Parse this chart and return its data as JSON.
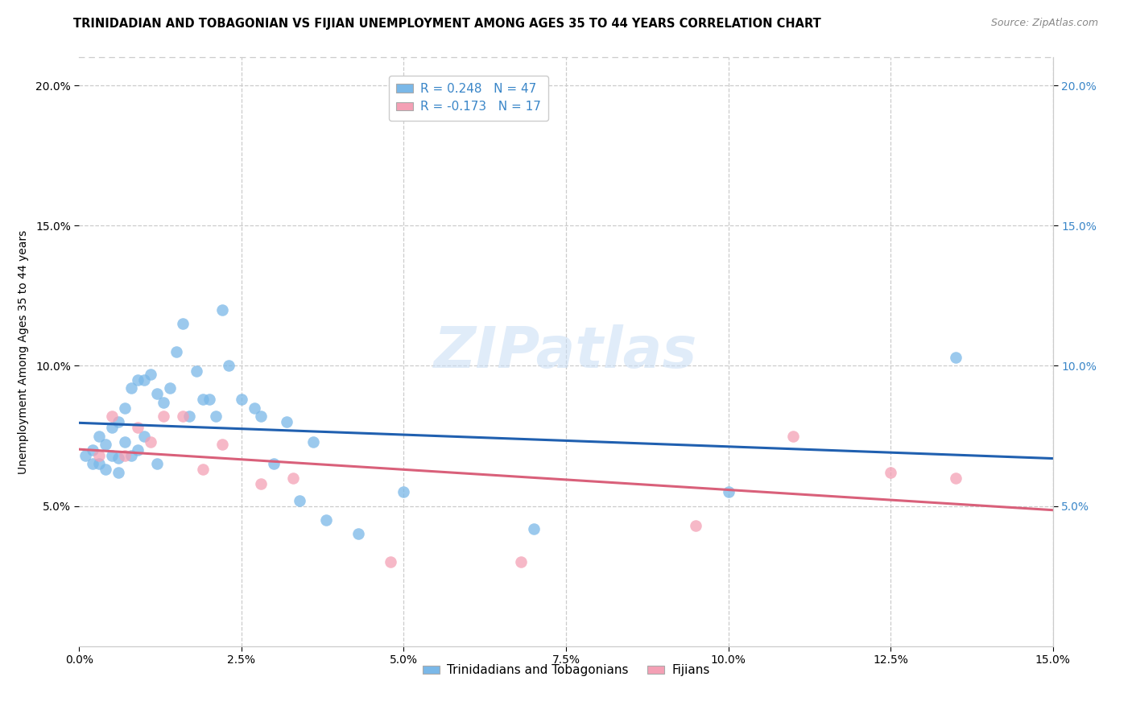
{
  "title": "TRINIDADIAN AND TOBAGONIAN VS FIJIAN UNEMPLOYMENT AMONG AGES 35 TO 44 YEARS CORRELATION CHART",
  "source": "Source: ZipAtlas.com",
  "ylabel": "Unemployment Among Ages 35 to 44 years",
  "xlim": [
    0.0,
    0.15
  ],
  "ylim": [
    0.0,
    0.21
  ],
  "x_ticks": [
    0.0,
    0.025,
    0.05,
    0.075,
    0.1,
    0.125,
    0.15
  ],
  "y_ticks": [
    0.05,
    0.1,
    0.15,
    0.2
  ],
  "blue_R": 0.248,
  "blue_N": 47,
  "pink_R": -0.173,
  "pink_N": 17,
  "blue_color": "#7ab8e8",
  "pink_color": "#f4a0b5",
  "blue_line_color": "#2060b0",
  "pink_line_color": "#d9607a",
  "legend_label_blue": "Trinidadians and Tobagonians",
  "legend_label_pink": "Fijians",
  "watermark": "ZIPatlas",
  "blue_points_x": [
    0.001,
    0.002,
    0.002,
    0.003,
    0.003,
    0.004,
    0.004,
    0.005,
    0.005,
    0.006,
    0.006,
    0.006,
    0.007,
    0.007,
    0.008,
    0.008,
    0.009,
    0.009,
    0.01,
    0.01,
    0.011,
    0.012,
    0.012,
    0.013,
    0.014,
    0.015,
    0.016,
    0.017,
    0.018,
    0.019,
    0.02,
    0.021,
    0.022,
    0.023,
    0.025,
    0.027,
    0.028,
    0.03,
    0.032,
    0.034,
    0.036,
    0.038,
    0.043,
    0.05,
    0.07,
    0.1,
    0.135
  ],
  "blue_points_y": [
    0.068,
    0.07,
    0.065,
    0.075,
    0.065,
    0.072,
    0.063,
    0.078,
    0.068,
    0.08,
    0.067,
    0.062,
    0.085,
    0.073,
    0.092,
    0.068,
    0.095,
    0.07,
    0.095,
    0.075,
    0.097,
    0.09,
    0.065,
    0.087,
    0.092,
    0.105,
    0.115,
    0.082,
    0.098,
    0.088,
    0.088,
    0.082,
    0.12,
    0.1,
    0.088,
    0.085,
    0.082,
    0.065,
    0.08,
    0.052,
    0.073,
    0.045,
    0.04,
    0.055,
    0.042,
    0.055,
    0.103
  ],
  "pink_points_x": [
    0.003,
    0.005,
    0.007,
    0.009,
    0.011,
    0.013,
    0.016,
    0.019,
    0.022,
    0.028,
    0.033,
    0.048,
    0.068,
    0.095,
    0.11,
    0.125,
    0.135
  ],
  "pink_points_y": [
    0.068,
    0.082,
    0.068,
    0.078,
    0.073,
    0.082,
    0.082,
    0.063,
    0.072,
    0.058,
    0.06,
    0.03,
    0.03,
    0.043,
    0.075,
    0.062,
    0.06
  ]
}
